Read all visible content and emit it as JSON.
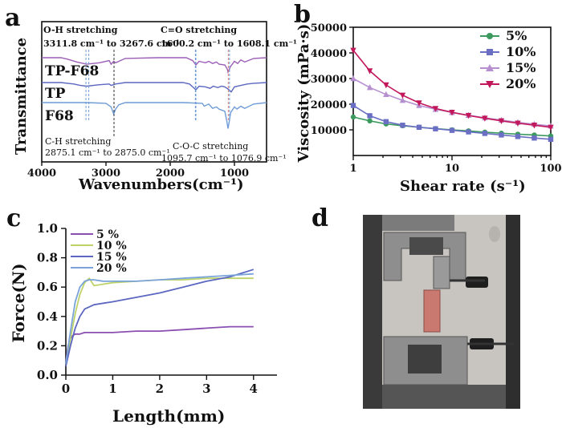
{
  "panels": {
    "a": "a",
    "b": "b",
    "c": "c",
    "d": "d"
  },
  "chart_data": [
    {
      "panel": "a",
      "type": "line",
      "xlabel": "Wavenumbers(cm⁻¹)",
      "ylabel": "Transmittance",
      "x_reversed": true,
      "xlim": [
        4000,
        500
      ],
      "xticks": [
        4000,
        3000,
        2000,
        1000
      ],
      "y_values_shown": false,
      "series": [
        {
          "name": "TP-F68",
          "color": "#9b5fb5",
          "offset": 3.0,
          "x": [
            4000,
            3700,
            3600,
            3450,
            3300,
            3100,
            2950,
            2920,
            2880,
            2850,
            2700,
            2200,
            1900,
            1750,
            1650,
            1600,
            1550,
            1450,
            1400,
            1340,
            1280,
            1240,
            1150,
            1110,
            1100,
            1060,
            1000,
            950,
            900,
            840,
            700,
            500
          ],
          "y": [
            0,
            0,
            -0.2,
            -0.6,
            -0.9,
            -0.7,
            -0.4,
            -0.9,
            -0.5,
            -0.7,
            -0.1,
            0,
            0,
            0,
            -0.4,
            -1.0,
            -0.5,
            -0.7,
            -0.5,
            -0.8,
            -0.6,
            -0.9,
            -1.0,
            -1.6,
            -2.0,
            -1.2,
            -0.5,
            -0.8,
            -0.3,
            -0.6,
            -0.1,
            0
          ]
        },
        {
          "name": "TP",
          "color": "#5b67c0",
          "offset": 1.7,
          "x": [
            4000,
            3700,
            3500,
            3400,
            3300,
            3100,
            2950,
            2920,
            2850,
            2700,
            2200,
            1800,
            1700,
            1650,
            1600,
            1550,
            1450,
            1380,
            1330,
            1260,
            1200,
            1150,
            1100,
            1050,
            1000,
            900,
            800,
            700,
            500
          ],
          "y": [
            0,
            0,
            -0.2,
            -0.4,
            -0.5,
            -0.3,
            -0.2,
            -0.4,
            -0.2,
            0,
            0,
            0,
            -0.2,
            -0.6,
            -1.0,
            -0.5,
            -0.6,
            -0.8,
            -0.5,
            -0.7,
            -0.5,
            -0.6,
            -0.9,
            -1.3,
            -0.6,
            -0.4,
            -0.2,
            -0.1,
            0
          ]
        },
        {
          "name": "F68",
          "color": "#6f9bd6",
          "offset": 0.4,
          "x": [
            4000,
            3600,
            3300,
            3000,
            2920,
            2880,
            2850,
            2800,
            2700,
            2200,
            1800,
            1500,
            1470,
            1400,
            1360,
            1340,
            1280,
            1240,
            1150,
            1120,
            1100,
            1080,
            1060,
            1000,
            960,
            900,
            840,
            700,
            500
          ],
          "y": [
            0,
            0,
            0,
            -0.1,
            -0.6,
            -1.6,
            -0.9,
            -0.3,
            0,
            0,
            0,
            -0.1,
            -0.5,
            -0.2,
            -0.6,
            -0.8,
            -0.6,
            -0.9,
            -1.2,
            -2.5,
            -3.6,
            -2.6,
            -1.4,
            -0.6,
            -0.9,
            -0.5,
            -0.8,
            -0.2,
            0
          ]
        }
      ],
      "annotations": [
        {
          "text": "O-H stretching",
          "x": 3311.8
        },
        {
          "text": "3311.8 cm⁻¹ to 3267.6 cm⁻¹",
          "x": 3267.6
        },
        {
          "text": "C=O stretching",
          "x": 1600.2
        },
        {
          "text": "1600.2 cm⁻¹ to 1608.1 cm⁻¹",
          "x": 1608.1
        },
        {
          "text": "C-H stretching",
          "x": 2875.1
        },
        {
          "text": "2875.1 cm⁻¹ to 2875.0 cm⁻¹",
          "x": 2875.0
        },
        {
          "text": "C-O-C stretching",
          "x": 1095.7
        },
        {
          "text": "1095.7 cm⁻¹ to 1076.9 cm⁻¹",
          "x": 1076.9
        }
      ],
      "marker_lines_x": [
        3311.8,
        3267.6,
        2875.1,
        1600.2,
        1608.1,
        1095.7,
        1076.9
      ]
    },
    {
      "panel": "b",
      "type": "line",
      "xlabel": "Shear rate (s⁻¹)",
      "ylabel": "Viscosity (mPa·s)",
      "x_scale": "log",
      "xlim": [
        1,
        100
      ],
      "ylim": [
        0,
        50000
      ],
      "xticks": [
        1,
        10,
        100
      ],
      "xtick_labels": [
        "1",
        "10",
        "100"
      ],
      "yticks": [
        10000,
        20000,
        30000,
        40000,
        50000
      ],
      "ytick_labels": [
        "10000",
        "20000",
        "30000",
        "40000",
        "50000"
      ],
      "legend": "top-right",
      "x": [
        1,
        1.47,
        2.15,
        3.16,
        4.64,
        6.81,
        10,
        14.7,
        21.5,
        31.6,
        46.4,
        68.1,
        100
      ],
      "series": [
        {
          "name": "5%",
          "color": "#3c9a5f",
          "marker": "circle",
          "values": [
            15000,
            13500,
            12300,
            11600,
            11000,
            10500,
            10000,
            9600,
            9100,
            8700,
            8300,
            8000,
            7600
          ]
        },
        {
          "name": "10%",
          "color": "#6b6fc4",
          "marker": "square",
          "values": [
            19500,
            15500,
            13200,
            11800,
            11000,
            10400,
            9800,
            9200,
            8600,
            8000,
            7400,
            6800,
            6300
          ]
        },
        {
          "name": "15%",
          "color": "#b68fd0",
          "marker": "triangle",
          "values": [
            30000,
            26500,
            23800,
            21500,
            19500,
            18000,
            16800,
            15700,
            14700,
            13800,
            12900,
            12200,
            11500
          ]
        },
        {
          "name": "20%",
          "color": "#c2185b",
          "marker": "triangle-down",
          "values": [
            41000,
            33000,
            27500,
            23500,
            20500,
            18300,
            16800,
            15600,
            14500,
            13500,
            12600,
            11800,
            11000
          ]
        }
      ]
    },
    {
      "panel": "c",
      "type": "line",
      "xlabel": "Length(mm)",
      "ylabel": "Force(N)",
      "xlim": [
        0,
        4.5
      ],
      "ylim": [
        0,
        1.0
      ],
      "xticks": [
        0,
        1,
        2,
        3,
        4
      ],
      "xtick_labels": [
        "0",
        "1",
        "2",
        "3",
        "4"
      ],
      "yticks": [
        0.0,
        0.2,
        0.4,
        0.6,
        0.8,
        1.0
      ],
      "ytick_labels": [
        "0.0",
        "0.2",
        "0.4",
        "0.6",
        "0.8",
        "1.0"
      ],
      "legend": "top-left",
      "series": [
        {
          "name": "5 %",
          "color": "#8a4fb0",
          "x": [
            0,
            0.05,
            0.1,
            0.15,
            0.2,
            0.3,
            0.4,
            0.6,
            1.0,
            1.5,
            2.0,
            2.5,
            3.0,
            3.5,
            4.0
          ],
          "values": [
            0.09,
            0.2,
            0.25,
            0.27,
            0.28,
            0.28,
            0.29,
            0.29,
            0.29,
            0.3,
            0.3,
            0.31,
            0.32,
            0.33,
            0.33
          ]
        },
        {
          "name": "10 %",
          "color": "#bdd36a",
          "x": [
            0,
            0.1,
            0.2,
            0.3,
            0.4,
            0.5,
            0.6,
            0.8,
            1.0,
            1.5,
            2.0,
            2.5,
            3.0,
            3.5,
            4.0
          ],
          "values": [
            0.07,
            0.25,
            0.42,
            0.55,
            0.63,
            0.66,
            0.61,
            0.62,
            0.63,
            0.64,
            0.65,
            0.65,
            0.66,
            0.66,
            0.66
          ]
        },
        {
          "name": "15 %",
          "color": "#5b67c0",
          "x": [
            0,
            0.1,
            0.2,
            0.3,
            0.4,
            0.6,
            0.8,
            1.0,
            1.5,
            2.0,
            2.5,
            3.0,
            3.5,
            4.0
          ],
          "values": [
            0.06,
            0.2,
            0.32,
            0.4,
            0.45,
            0.48,
            0.49,
            0.5,
            0.53,
            0.56,
            0.6,
            0.64,
            0.67,
            0.72
          ]
        },
        {
          "name": "20 %",
          "color": "#7aa3d9",
          "x": [
            0,
            0.1,
            0.2,
            0.3,
            0.4,
            0.5,
            0.6,
            0.8,
            1.0,
            1.5,
            2.0,
            2.5,
            3.0,
            3.5,
            4.0
          ],
          "values": [
            0.08,
            0.3,
            0.5,
            0.6,
            0.64,
            0.65,
            0.65,
            0.64,
            0.64,
            0.64,
            0.65,
            0.66,
            0.67,
            0.68,
            0.69
          ]
        }
      ]
    }
  ],
  "photo": {
    "panel": "d",
    "description_shown": false,
    "colors": {
      "frame": "#5b5b5b",
      "metal": "#8e8e8e",
      "dark": "#2a2a2a",
      "wall": "#c8c4bf",
      "sample": "#c9796f"
    }
  }
}
